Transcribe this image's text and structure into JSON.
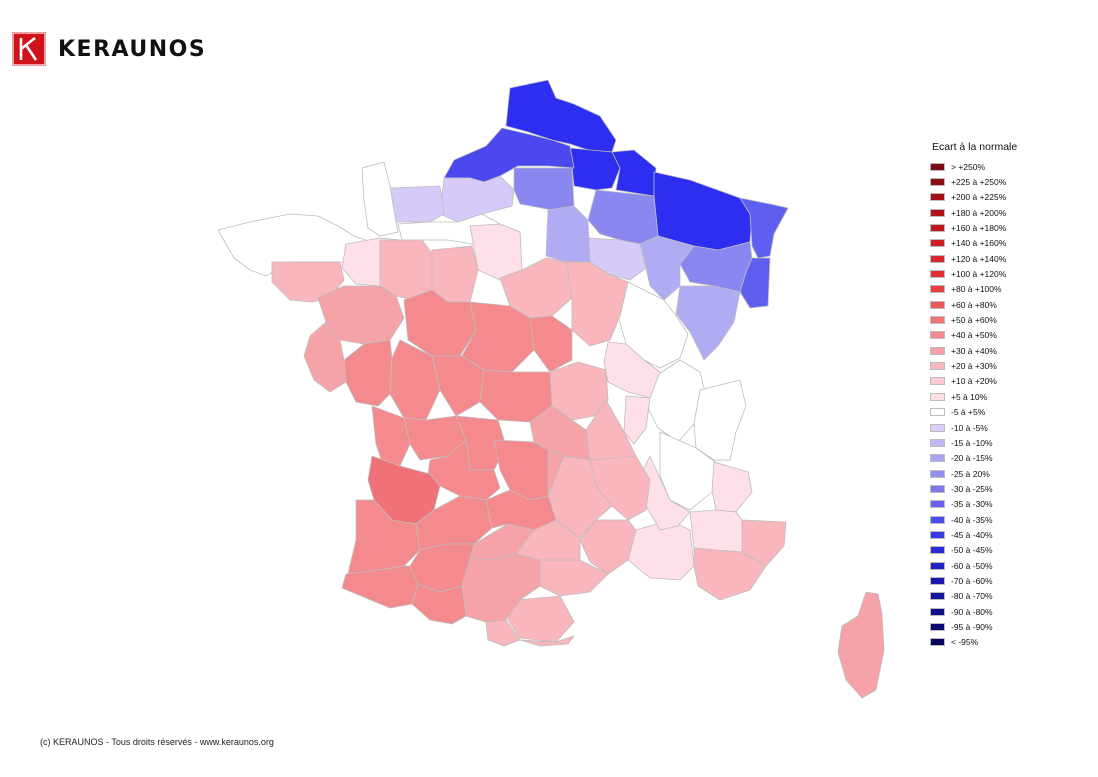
{
  "brand": {
    "name": "KERAUNOS",
    "logo_letter": "K",
    "logo_color": "#d0121b"
  },
  "legend": {
    "title": "Ecart à la normale",
    "items": [
      {
        "label": "> +250%",
        "color": "#7a0a0f"
      },
      {
        "label": "+225 à +250%",
        "color": "#8c0c12"
      },
      {
        "label": "+200 à +225%",
        "color": "#a01016"
      },
      {
        "label": "+180 à +200%",
        "color": "#b0141a"
      },
      {
        "label": "+160 à +180%",
        "color": "#c0181e"
      },
      {
        "label": "+140 à +160%",
        "color": "#cc1e24"
      },
      {
        "label": "+120 à +140%",
        "color": "#d8262c"
      },
      {
        "label": "+100 à +120%",
        "color": "#e03036"
      },
      {
        "label": "+80 à +100%",
        "color": "#e63c42"
      },
      {
        "label": "+60 à +80%",
        "color": "#ec585c"
      },
      {
        "label": "+50 à +60%",
        "color": "#f07276"
      },
      {
        "label": "+40 à +50%",
        "color": "#f48a8e"
      },
      {
        "label": "+30 à +40%",
        "color": "#f7a1a6"
      },
      {
        "label": "+20 à +30%",
        "color": "#f9b6bc"
      },
      {
        "label": "+10 à +20%",
        "color": "#fbcbd1"
      },
      {
        "label": "+5 à 10%",
        "color": "#fde0e6"
      },
      {
        "label": "-5 à +5%",
        "color": "#ffffff"
      },
      {
        "label": "-10 à -5%",
        "color": "#d9ccf8"
      },
      {
        "label": "-15 à -10%",
        "color": "#c2b6f4"
      },
      {
        "label": "-20 à -15%",
        "color": "#aaa4f2"
      },
      {
        "label": "-25 à 20%",
        "color": "#9290ef"
      },
      {
        "label": "-30 à -25%",
        "color": "#7a78ec"
      },
      {
        "label": "-35 à -30%",
        "color": "#6462ea"
      },
      {
        "label": "-40 à -35%",
        "color": "#4e4ce8"
      },
      {
        "label": "-45 à -40%",
        "color": "#3838e4"
      },
      {
        "label": "-50 à -45%",
        "color": "#2a2ad8"
      },
      {
        "label": "-60 à -50%",
        "color": "#2222c4"
      },
      {
        "label": "-70 à -60%",
        "color": "#1a1ab0"
      },
      {
        "label": "-80 à -70%",
        "color": "#14149c"
      },
      {
        "label": "-90 à -80%",
        "color": "#0e0e88"
      },
      {
        "label": "-95 à -90%",
        "color": "#0a0a74"
      },
      {
        "label": "< -95%",
        "color": "#060660"
      }
    ]
  },
  "map_colors": {
    "border": "#bdbdbd",
    "nord": "#2e2ef0",
    "aisne": "#4a48ee",
    "east": "#5e5ef0",
    "mid_blue": "#8a88f0",
    "light_blue": "#b0acf4",
    "pale_blue": "#d6cbf8",
    "white": "#ffffff",
    "pale_pink": "#fde0e8",
    "pink": "#f9b6bd",
    "mid_pink": "#f5a3a8",
    "red_pink": "#f48a8e",
    "gironde": "#f07278"
  },
  "footer": "(c) KERAUNOS - Tous droits réservés - www.keraunos.org"
}
